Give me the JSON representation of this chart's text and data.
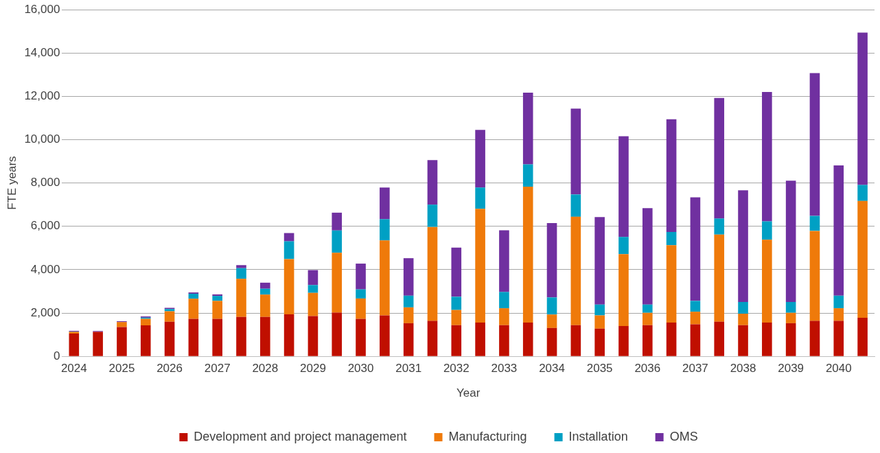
{
  "chart_data": {
    "type": "bar",
    "stacked": true,
    "xlabel": "Year",
    "ylabel": "FTE years",
    "categories": [
      "2024",
      null,
      "2025",
      null,
      "2026",
      null,
      "2027",
      null,
      "2028",
      null,
      "2029",
      null,
      "2030",
      null,
      "2031",
      null,
      "2032",
      null,
      "2033",
      null,
      "2034",
      null,
      "2035",
      null,
      "2036",
      null,
      "2037",
      null,
      "2038",
      null,
      "2039",
      null,
      "2040",
      null
    ],
    "series": [
      {
        "name": "Development and project management",
        "color": "#c00f00",
        "values": [
          1050,
          1130,
          1350,
          1430,
          1600,
          1730,
          1730,
          1820,
          1820,
          1940,
          1860,
          2020,
          1730,
          1890,
          1530,
          1640,
          1440,
          1560,
          1440,
          1560,
          1310,
          1440,
          1280,
          1400,
          1440,
          1560,
          1480,
          1600,
          1440,
          1560,
          1530,
          1640,
          1640,
          1780
        ]
      },
      {
        "name": "Manufacturing",
        "color": "#ef7a0a",
        "values": [
          80,
          0,
          230,
          300,
          480,
          930,
          830,
          1760,
          1030,
          2550,
          1070,
          2760,
          940,
          3460,
          730,
          4330,
          700,
          5250,
          780,
          6270,
          620,
          5000,
          610,
          3320,
          570,
          3570,
          580,
          4020,
          530,
          3820,
          480,
          4150,
          580,
          5390
        ]
      },
      {
        "name": "Installation",
        "color": "#00a0c4",
        "values": [
          20,
          null,
          null,
          60,
          100,
          230,
          230,
          490,
          270,
          820,
          360,
          1030,
          420,
          980,
          540,
          1030,
          610,
          980,
          750,
          1030,
          790,
          1030,
          500,
          790,
          380,
          610,
          500,
          740,
          540,
          850,
          500,
          690,
          580,
          740
        ]
      },
      {
        "name": "OMS",
        "color": "#7030a0",
        "values": [
          30,
          40,
          40,
          50,
          60,
          60,
          70,
          140,
          280,
          380,
          690,
          820,
          1190,
          1460,
          1730,
          2060,
          2270,
          2660,
          2850,
          3310,
          3430,
          3960,
          4040,
          4650,
          4450,
          5200,
          4780,
          5560,
          5150,
          5970,
          5600,
          6590,
          6010,
          7030
        ]
      }
    ],
    "ylim": [
      0,
      16000
    ],
    "yticks": [
      0,
      {
        "value": 2000,
        "label": "2,000"
      },
      {
        "value": 4000,
        "label": "4,000"
      },
      {
        "value": 6000,
        "label": "6,000"
      },
      {
        "value": 8000,
        "label": "8,000"
      },
      {
        "value": 10000,
        "label": "10,000"
      },
      {
        "value": 12000,
        "label": "12,000"
      },
      {
        "value": 14000,
        "label": "14,000"
      },
      {
        "value": 16000,
        "label": "16,000"
      }
    ],
    "grid": "y",
    "legend": "bottom"
  }
}
